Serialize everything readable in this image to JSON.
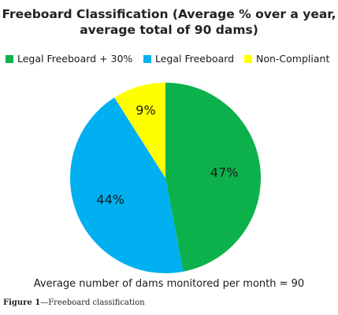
{
  "chart_data": {
    "type": "pie",
    "title_lines": [
      "Freeboard Classification (Average % over a year,",
      "average total of 90 dams)"
    ],
    "categories": [
      "Legal Freeboard + 30%",
      "Legal Freeboard",
      "Non-Compliant"
    ],
    "values": [
      47,
      44,
      9
    ],
    "slice_labels": [
      "47%",
      "44%",
      "9%"
    ],
    "colors": [
      "#0db14b",
      "#00b0f0",
      "#ffff00"
    ],
    "legend_position": "top",
    "start": "12 o'clock",
    "direction": "clockwise",
    "subtitle": "Average number of dams monitored per month = 90"
  },
  "caption": {
    "figure_number": "Figure 1",
    "separator": "—",
    "text": "Freeboard classification"
  }
}
